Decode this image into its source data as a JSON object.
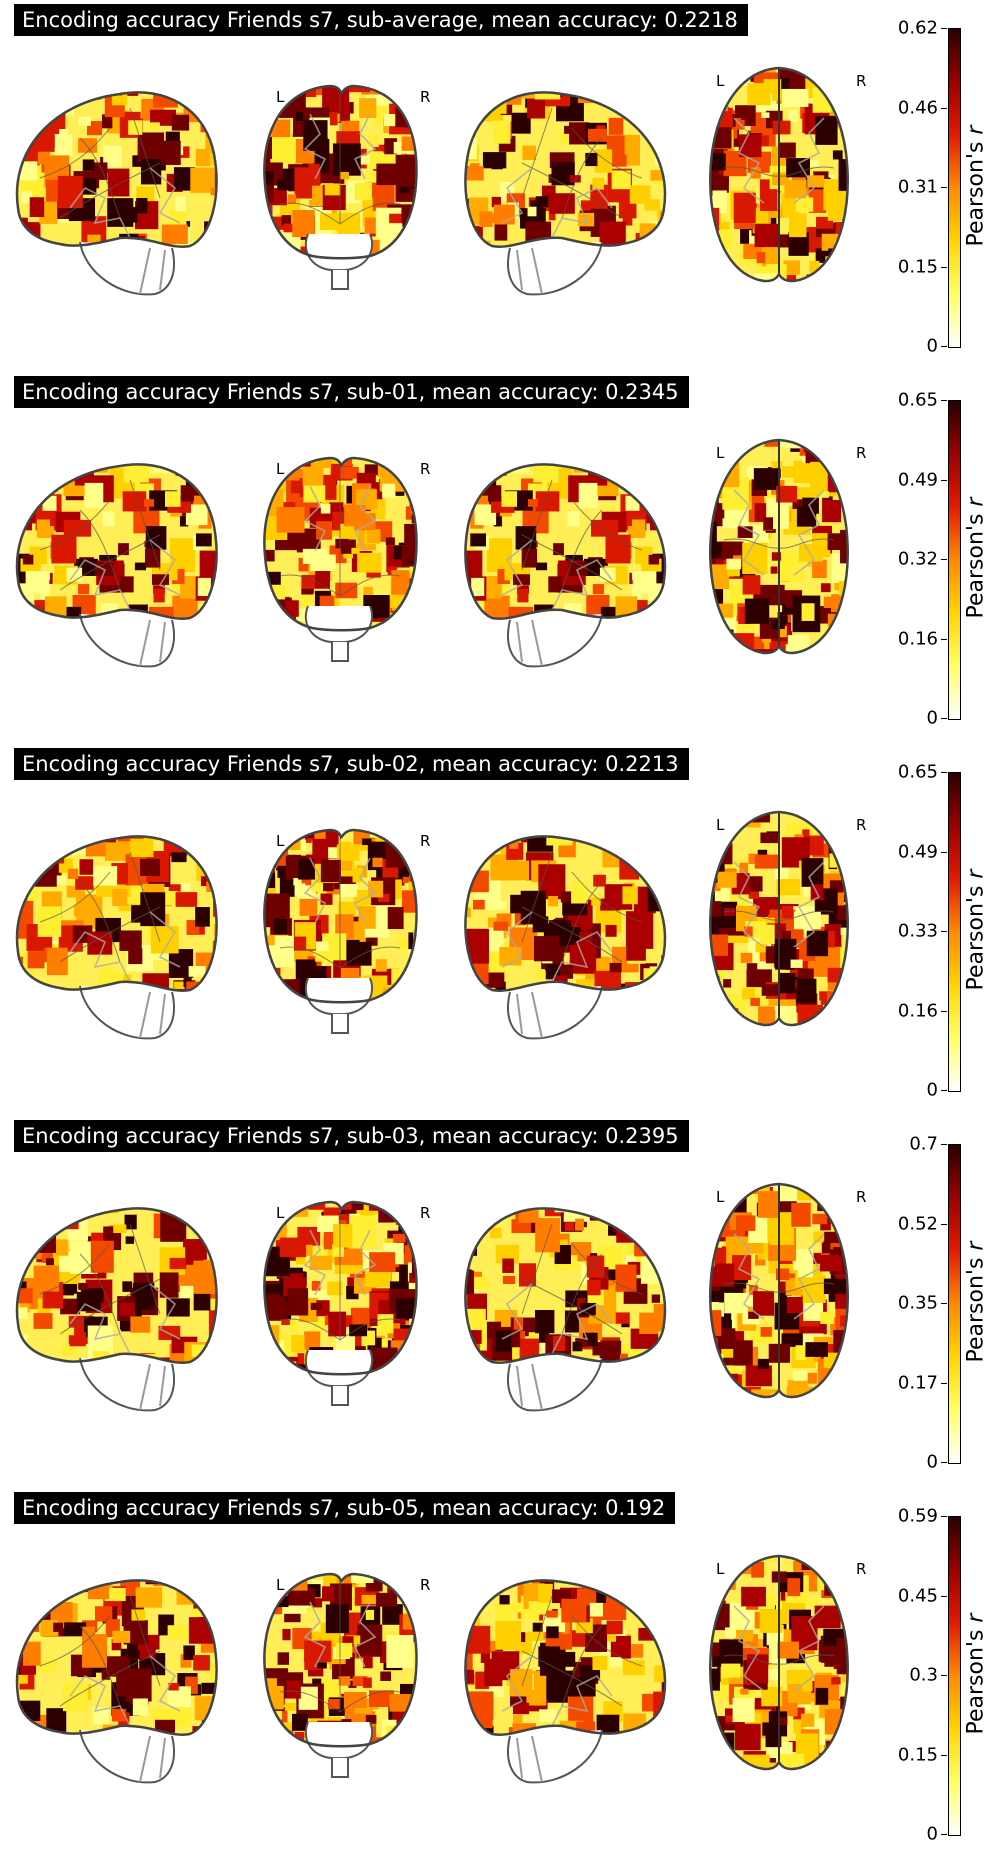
{
  "colorbar_label": "Pearson's",
  "colorbar_label_italic": "r",
  "view_labels": {
    "left": "L",
    "right": "R"
  },
  "panels": [
    {
      "title": "Encoding accuracy Friends s7, sub-average, mean accuracy: 0.2218",
      "ticks": [
        "0.62",
        "0.46",
        "0.31",
        "0.15",
        "0"
      ]
    },
    {
      "title": "Encoding accuracy Friends s7, sub-01, mean accuracy: 0.2345",
      "ticks": [
        "0.65",
        "0.49",
        "0.32",
        "0.16",
        "0"
      ]
    },
    {
      "title": "Encoding accuracy Friends s7, sub-02, mean accuracy: 0.2213",
      "ticks": [
        "0.65",
        "0.49",
        "0.33",
        "0.16",
        "0"
      ]
    },
    {
      "title": "Encoding accuracy Friends s7, sub-03, mean accuracy: 0.2395",
      "ticks": [
        "0.7",
        "0.52",
        "0.35",
        "0.17",
        "0"
      ]
    },
    {
      "title": "Encoding accuracy Friends s7, sub-05, mean accuracy: 0.192",
      "ticks": [
        "0.59",
        "0.45",
        "0.3",
        "0.15",
        "0"
      ]
    }
  ],
  "colormap": {
    "name": "hot_r",
    "stops": [
      "#ffffff",
      "#ffff66",
      "#ffd400",
      "#ff8a00",
      "#e41a00",
      "#9b0000",
      "#2a0000"
    ]
  }
}
